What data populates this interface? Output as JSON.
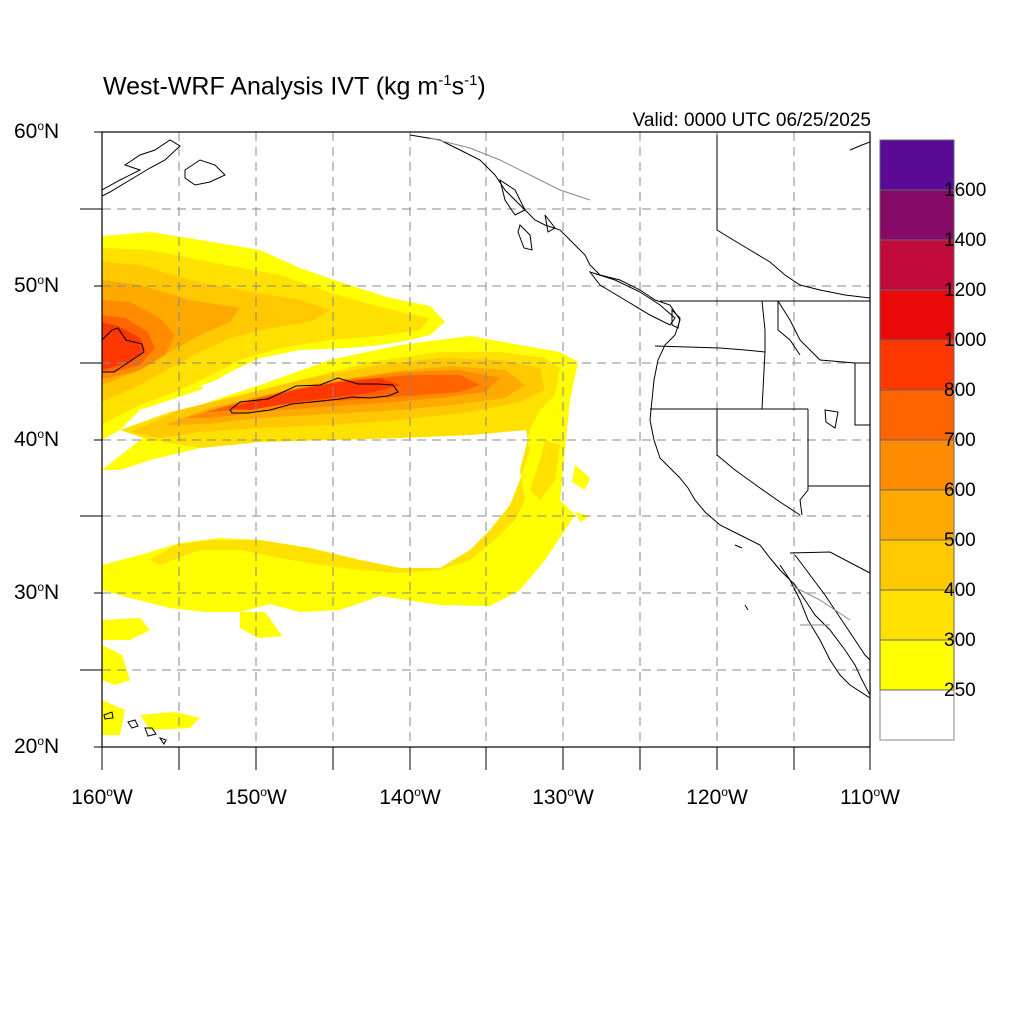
{
  "title": {
    "prefix": "West-WRF Analysis IVT (kg m",
    "exp1": "-1",
    "mid": "s",
    "exp2": "-1",
    "suffix": ")"
  },
  "valid_time": "Valid: 0000 UTC 06/25/2025",
  "map": {
    "lon_range": [
      -160,
      -110
    ],
    "lat_range": [
      20,
      60
    ],
    "lat_ticks": [
      {
        "value": 60,
        "num": "60",
        "hemi": "N"
      },
      {
        "value": 50,
        "num": "50",
        "hemi": "N"
      },
      {
        "value": 40,
        "num": "40",
        "hemi": "N"
      },
      {
        "value": 30,
        "num": "30",
        "hemi": "N"
      },
      {
        "value": 20,
        "num": "20",
        "hemi": "N"
      }
    ],
    "lon_ticks": [
      {
        "value": -160,
        "num": "160",
        "hemi": "W"
      },
      {
        "value": -150,
        "num": "150",
        "hemi": "W"
      },
      {
        "value": -140,
        "num": "140",
        "hemi": "W"
      },
      {
        "value": -130,
        "num": "130",
        "hemi": "W"
      },
      {
        "value": -120,
        "num": "120",
        "hemi": "W"
      },
      {
        "value": -110,
        "num": "110",
        "hemi": "W"
      }
    ],
    "grid": "dashed every 5 degrees"
  },
  "colorbar": {
    "labels": [
      "1600",
      "1400",
      "1200",
      "1000",
      "800",
      "700",
      "600",
      "500",
      "400",
      "300",
      "250"
    ],
    "colors": [
      "#ffffff",
      "#ffff00",
      "#ffe100",
      "#ffc800",
      "#ffaa00",
      "#ff8c00",
      "#ff6400",
      "#ff3700",
      "#eb0a0a",
      "#c30a3c",
      "#870a69",
      "#5a0a96"
    ]
  }
}
